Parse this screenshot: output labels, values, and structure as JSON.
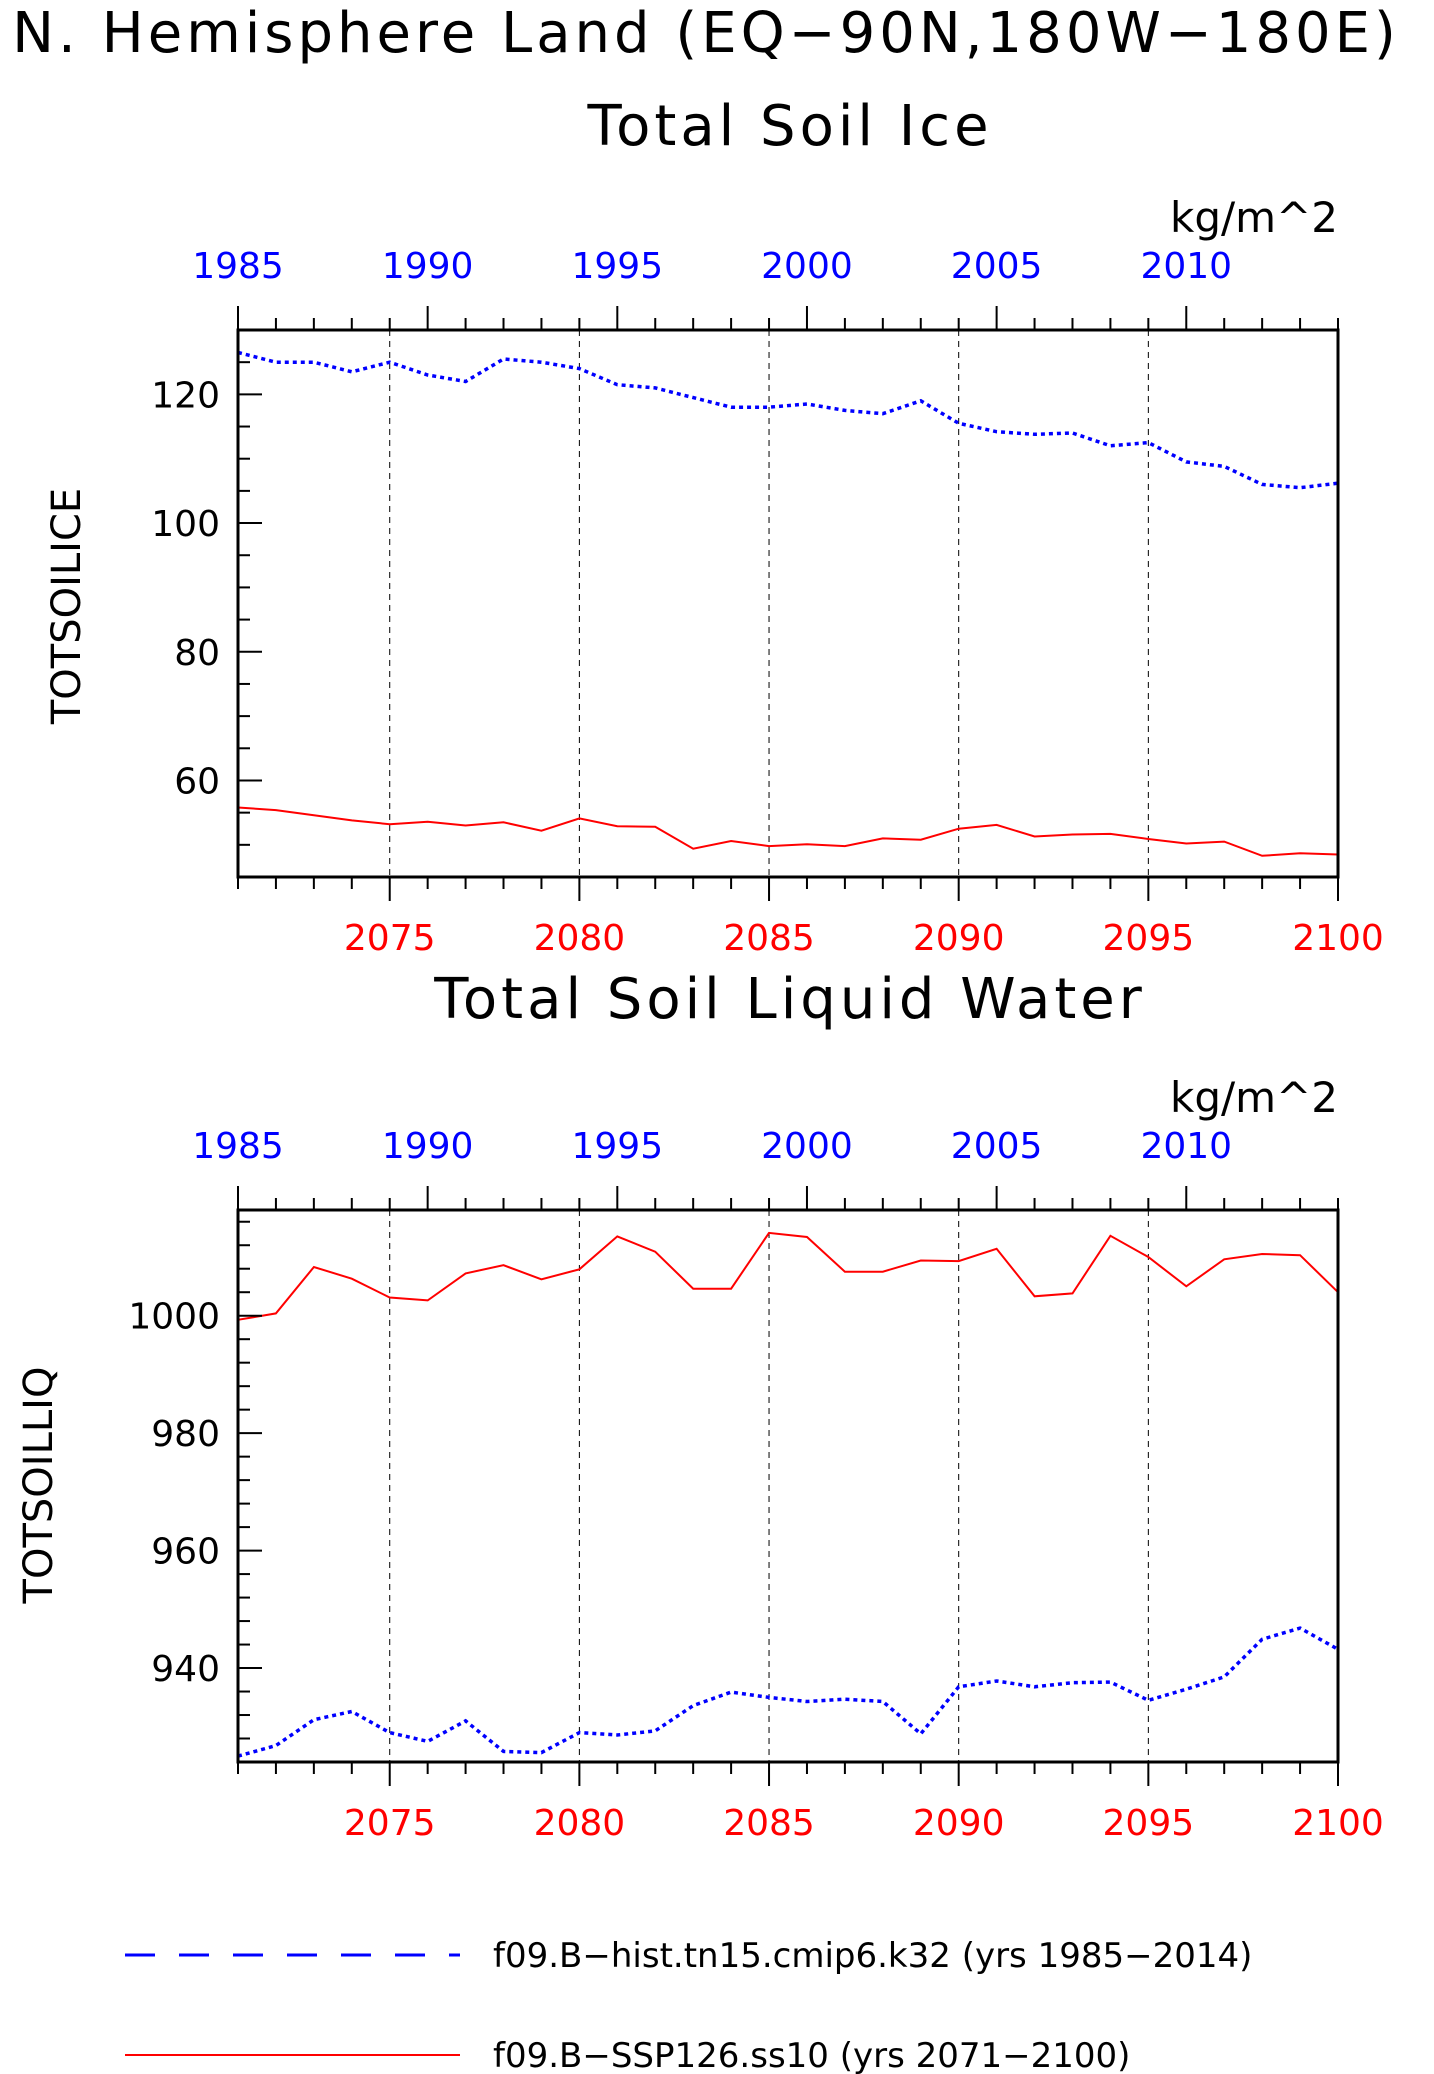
{
  "figure": {
    "title": "N. Hemisphere Land (EQ−90N,180W−180E)",
    "units": "kg/m^2"
  },
  "colors": {
    "hist": "#0000ff",
    "ssp": "#ff0000",
    "axis": "#000000"
  },
  "legend": {
    "hist_label": "f09.B−hist.tn15.cmip6.k32 (yrs 1985−2014)",
    "ssp_label": "f09.B−SSP126.ss10 (yrs 2071−2100)"
  },
  "chart_data": [
    {
      "type": "line",
      "title": "Total Soil Ice",
      "ylabel": "TOTSOILICE",
      "units": "kg/m^2",
      "ylim": [
        45,
        130
      ],
      "yticks": [
        60,
        80,
        100,
        120
      ],
      "yminor_step": 5,
      "x_top": {
        "range": [
          1985,
          2014
        ],
        "ticks": [
          1985,
          1990,
          1995,
          2000,
          2005,
          2010
        ]
      },
      "x_bottom": {
        "range": [
          2071,
          2100
        ],
        "ticks": [
          2075,
          2080,
          2085,
          2090,
          2095,
          2100
        ]
      },
      "series": [
        {
          "name": "f09.B−hist.tn15.cmip6.k32",
          "axis": "top",
          "style": "dotted",
          "x": [
            1985,
            1986,
            1987,
            1988,
            1989,
            1990,
            1991,
            1992,
            1993,
            1994,
            1995,
            1996,
            1997,
            1998,
            1999,
            2000,
            2001,
            2002,
            2003,
            2004,
            2005,
            2006,
            2007,
            2008,
            2009,
            2010,
            2011,
            2012,
            2013,
            2014
          ],
          "y": [
            126.5,
            125,
            125,
            123.5,
            125,
            123,
            122,
            125.5,
            125,
            124,
            121.5,
            121,
            119.5,
            118,
            118,
            118.5,
            117.5,
            117,
            119,
            115.5,
            114.2,
            113.8,
            114,
            112,
            112.5,
            109.5,
            108.8,
            106,
            105.5,
            106.2
          ]
        },
        {
          "name": "f09.B−SSP126.ss10",
          "axis": "bottom",
          "style": "solid",
          "x": [
            2071,
            2072,
            2073,
            2074,
            2075,
            2076,
            2077,
            2078,
            2079,
            2080,
            2081,
            2082,
            2083,
            2084,
            2085,
            2086,
            2087,
            2088,
            2089,
            2090,
            2091,
            2092,
            2093,
            2094,
            2095,
            2096,
            2097,
            2098,
            2099,
            2100
          ],
          "y": [
            55.8,
            55.4,
            54.6,
            53.8,
            53.2,
            53.6,
            53,
            53.5,
            52.2,
            54.1,
            52.9,
            52.8,
            49.4,
            50.6,
            49.8,
            50.1,
            49.8,
            51,
            50.8,
            52.5,
            53.1,
            51.3,
            51.6,
            51.7,
            50.9,
            50.2,
            50.5,
            48.3,
            48.7,
            48.5
          ]
        }
      ]
    },
    {
      "type": "line",
      "title": "Total Soil Liquid Water",
      "ylabel": "TOTSOILLIQ",
      "units": "kg/m^2",
      "ylim": [
        924,
        1018
      ],
      "yticks": [
        940,
        960,
        980,
        1000
      ],
      "yminor_step": 4,
      "x_top": {
        "range": [
          1985,
          2014
        ],
        "ticks": [
          1985,
          1990,
          1995,
          2000,
          2005,
          2010
        ]
      },
      "x_bottom": {
        "range": [
          2071,
          2100
        ],
        "ticks": [
          2075,
          2080,
          2085,
          2090,
          2095,
          2100
        ]
      },
      "series": [
        {
          "name": "f09.B−hist.tn15.cmip6.k32",
          "axis": "top",
          "style": "dotted",
          "x": [
            1985,
            1986,
            1987,
            1988,
            1989,
            1990,
            1991,
            1992,
            1993,
            1994,
            1995,
            1996,
            1997,
            1998,
            1999,
            2000,
            2001,
            2002,
            2003,
            2004,
            2005,
            2006,
            2007,
            2008,
            2009,
            2010,
            2011,
            2012,
            2013,
            2014
          ],
          "y": [
            925,
            926.8,
            931.2,
            932.6,
            929,
            927.5,
            931,
            925.8,
            925.6,
            929,
            928.6,
            929.3,
            933.6,
            935.9,
            935,
            934.3,
            934.7,
            934.3,
            928.8,
            936.8,
            937.8,
            936.8,
            937.5,
            937.6,
            934.5,
            936.4,
            938.5,
            944.9,
            946.8,
            943.2
          ]
        },
        {
          "name": "f09.B−SSP126.ss10",
          "axis": "bottom",
          "style": "solid",
          "x": [
            2071,
            2072,
            2073,
            2074,
            2075,
            2076,
            2077,
            2078,
            2079,
            2080,
            2081,
            2082,
            2083,
            2084,
            2085,
            2086,
            2087,
            2088,
            2089,
            2090,
            2091,
            2092,
            2093,
            2094,
            2095,
            2096,
            2097,
            2098,
            2099,
            2100
          ],
          "y": [
            999.3,
            1000.4,
            1008.3,
            1006.3,
            1003.1,
            1002.6,
            1007.2,
            1008.6,
            1006.2,
            1007.9,
            1013.5,
            1010.9,
            1004.6,
            1004.6,
            1014.1,
            1013.4,
            1007.5,
            1007.5,
            1009.4,
            1009.3,
            1011.4,
            1003.3,
            1003.8,
            1013.6,
            1010,
            1005,
            1009.6,
            1010.5,
            1010.3,
            1004
          ]
        }
      ]
    }
  ]
}
